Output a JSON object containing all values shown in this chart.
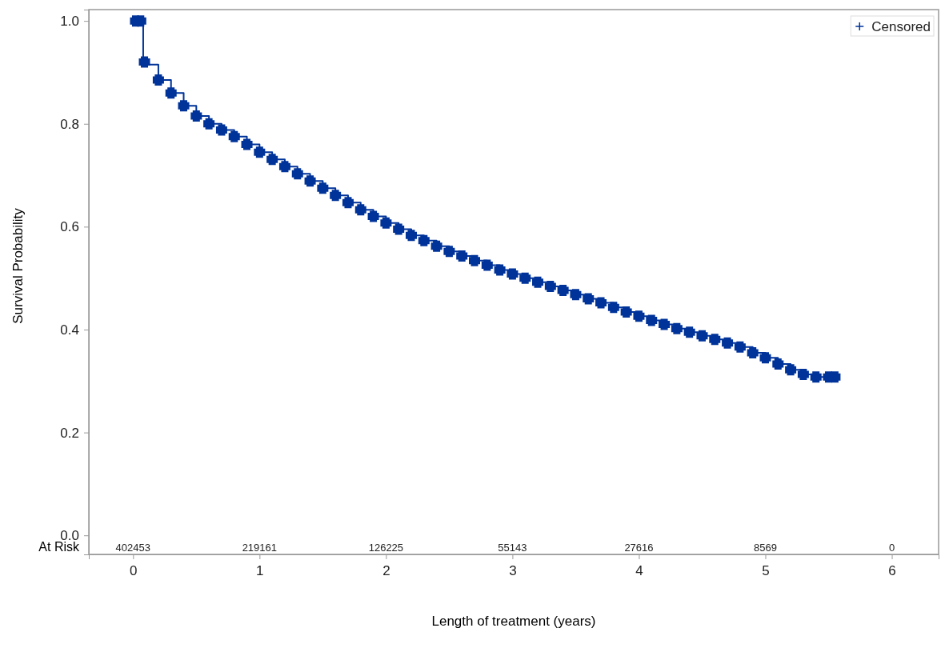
{
  "chart_data": {
    "type": "step",
    "xlabel": "Length of treatment (years)",
    "ylabel": "Survival Probability",
    "xlim": [
      -0.35,
      6.37
    ],
    "ylim": [
      -0.037,
      1.022
    ],
    "xticks": [
      0,
      1,
      2,
      3,
      4,
      5,
      6
    ],
    "yticks": [
      {
        "value": 0,
        "label": "0.0"
      },
      {
        "value": 0.2,
        "label": "0.2"
      },
      {
        "value": 0.4,
        "label": "0.4"
      },
      {
        "value": 0.6,
        "label": "0.6"
      },
      {
        "value": 0.8,
        "label": "0.8"
      },
      {
        "value": 1,
        "label": "1.0"
      }
    ],
    "grid": false,
    "legend": "top right",
    "line_style": "solid",
    "series": [
      {
        "color": "#003399",
        "x": [
          0,
          0.08,
          0.1,
          0.2,
          0.3,
          0.4,
          0.5,
          0.6,
          0.7,
          0.8,
          0.9,
          1.0,
          1.1,
          1.2,
          1.3,
          1.4,
          1.5,
          1.6,
          1.7,
          1.8,
          1.9,
          2.0,
          2.1,
          2.2,
          2.3,
          2.4,
          2.5,
          2.6,
          2.7,
          2.8,
          2.9,
          3.0,
          3.1,
          3.2,
          3.3,
          3.4,
          3.5,
          3.6,
          3.7,
          3.8,
          3.9,
          4.0,
          4.1,
          4.2,
          4.3,
          4.4,
          4.5,
          4.6,
          4.7,
          4.8,
          4.9,
          5.0,
          5.1,
          5.2,
          5.3,
          5.4,
          5.5,
          5.55
        ],
        "values": [
          1.0,
          0.92,
          0.915,
          0.885,
          0.86,
          0.835,
          0.815,
          0.8,
          0.788,
          0.775,
          0.76,
          0.745,
          0.731,
          0.717,
          0.703,
          0.689,
          0.675,
          0.661,
          0.647,
          0.633,
          0.62,
          0.607,
          0.595,
          0.583,
          0.573,
          0.562,
          0.552,
          0.543,
          0.534,
          0.525,
          0.516,
          0.508,
          0.5,
          0.492,
          0.484,
          0.476,
          0.468,
          0.46,
          0.452,
          0.443,
          0.434,
          0.426,
          0.418,
          0.41,
          0.402,
          0.395,
          0.388,
          0.381,
          0.374,
          0.366,
          0.355,
          0.345,
          0.333,
          0.322,
          0.313,
          0.308,
          0.308,
          0.308
        ]
      },
      {
        "type": "scatter",
        "name": "Censored",
        "marker": "cross",
        "color": "#003399",
        "x": [
          0.02,
          0.06,
          0.09,
          0.2,
          0.3,
          0.4,
          0.5,
          0.6,
          0.7,
          0.8,
          0.9,
          1.0,
          1.1,
          1.2,
          1.3,
          1.4,
          1.5,
          1.6,
          1.7,
          1.8,
          1.9,
          2.0,
          2.1,
          2.2,
          2.3,
          2.4,
          2.5,
          2.6,
          2.7,
          2.8,
          2.9,
          3.0,
          3.1,
          3.2,
          3.3,
          3.4,
          3.5,
          3.6,
          3.7,
          3.8,
          3.9,
          4.0,
          4.1,
          4.2,
          4.3,
          4.4,
          4.5,
          4.6,
          4.7,
          4.8,
          4.9,
          5.0,
          5.1,
          5.2,
          5.3,
          5.4,
          5.5,
          5.55
        ],
        "values": [
          1.0,
          1.0,
          0.92,
          0.885,
          0.86,
          0.835,
          0.815,
          0.8,
          0.788,
          0.775,
          0.76,
          0.745,
          0.731,
          0.717,
          0.703,
          0.689,
          0.675,
          0.661,
          0.647,
          0.633,
          0.62,
          0.607,
          0.595,
          0.583,
          0.573,
          0.562,
          0.552,
          0.543,
          0.534,
          0.525,
          0.516,
          0.508,
          0.5,
          0.492,
          0.484,
          0.476,
          0.468,
          0.46,
          0.452,
          0.443,
          0.434,
          0.426,
          0.418,
          0.41,
          0.402,
          0.395,
          0.388,
          0.381,
          0.374,
          0.366,
          0.355,
          0.345,
          0.333,
          0.322,
          0.313,
          0.308,
          0.308,
          0.308
        ]
      }
    ],
    "annotations": [
      "At Risk",
      "402453",
      "219161",
      "126225",
      "55143",
      "27616",
      "8569",
      "0"
    ]
  }
}
